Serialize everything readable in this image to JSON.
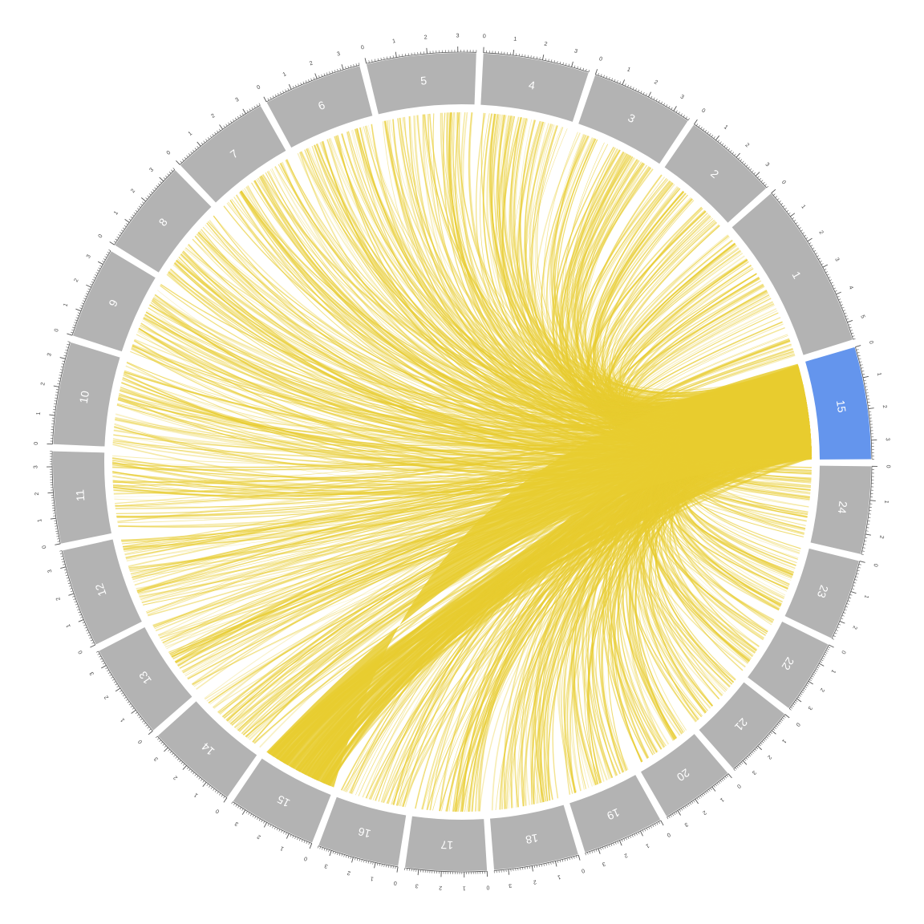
{
  "colors": {
    "segment_default": "#b3b3b3",
    "segment_highlight": "#6495ed",
    "ribbon": "#e8cc2f",
    "tick": "#555555",
    "label": "#ffffff"
  },
  "chart_data": {
    "type": "chord",
    "highlighted_segment": "15",
    "segments": [
      {
        "id": "15",
        "role": "source",
        "highlighted": true,
        "ticks": [
          0,
          1,
          2,
          3
        ]
      },
      {
        "id": "1",
        "ticks": [
          0,
          1,
          2,
          3,
          4,
          5
        ]
      },
      {
        "id": "2",
        "ticks": [
          0,
          1,
          2,
          3
        ]
      },
      {
        "id": "3",
        "ticks": [
          0,
          1,
          2,
          3
        ]
      },
      {
        "id": "4",
        "ticks": [
          0,
          1,
          2,
          3
        ]
      },
      {
        "id": "5",
        "ticks": [
          0,
          1,
          2,
          3
        ]
      },
      {
        "id": "6",
        "ticks": [
          0,
          1,
          2,
          3
        ]
      },
      {
        "id": "7",
        "ticks": [
          0,
          1,
          2,
          3
        ]
      },
      {
        "id": "8",
        "ticks": [
          0,
          1,
          2,
          3
        ]
      },
      {
        "id": "9",
        "ticks": [
          0,
          1,
          2,
          3
        ]
      },
      {
        "id": "10",
        "ticks": [
          0,
          1,
          2,
          3
        ]
      },
      {
        "id": "11",
        "ticks": [
          0,
          1,
          2,
          3
        ]
      },
      {
        "id": "12",
        "ticks": [
          0,
          1,
          2,
          3
        ]
      },
      {
        "id": "13",
        "ticks": [
          0,
          1,
          2,
          3
        ]
      },
      {
        "id": "14",
        "ticks": [
          0,
          1,
          2,
          3
        ]
      },
      {
        "id": "15",
        "ticks": [
          0,
          1,
          2,
          3
        ]
      },
      {
        "id": "16",
        "ticks": [
          0,
          1,
          2,
          3
        ]
      },
      {
        "id": "17",
        "ticks": [
          0,
          1,
          2,
          3
        ]
      },
      {
        "id": "18",
        "ticks": [
          0,
          1,
          2,
          3
        ]
      },
      {
        "id": "19",
        "ticks": [
          0,
          1,
          2,
          3
        ]
      },
      {
        "id": "20",
        "ticks": [
          0,
          1,
          2,
          3
        ]
      },
      {
        "id": "21",
        "ticks": [
          0,
          1,
          2,
          3
        ]
      },
      {
        "id": "22",
        "ticks": [
          0,
          1,
          2,
          3
        ]
      },
      {
        "id": "23",
        "ticks": [
          0,
          1,
          2
        ]
      },
      {
        "id": "24",
        "ticks": [
          0,
          1,
          2
        ]
      }
    ]
  }
}
